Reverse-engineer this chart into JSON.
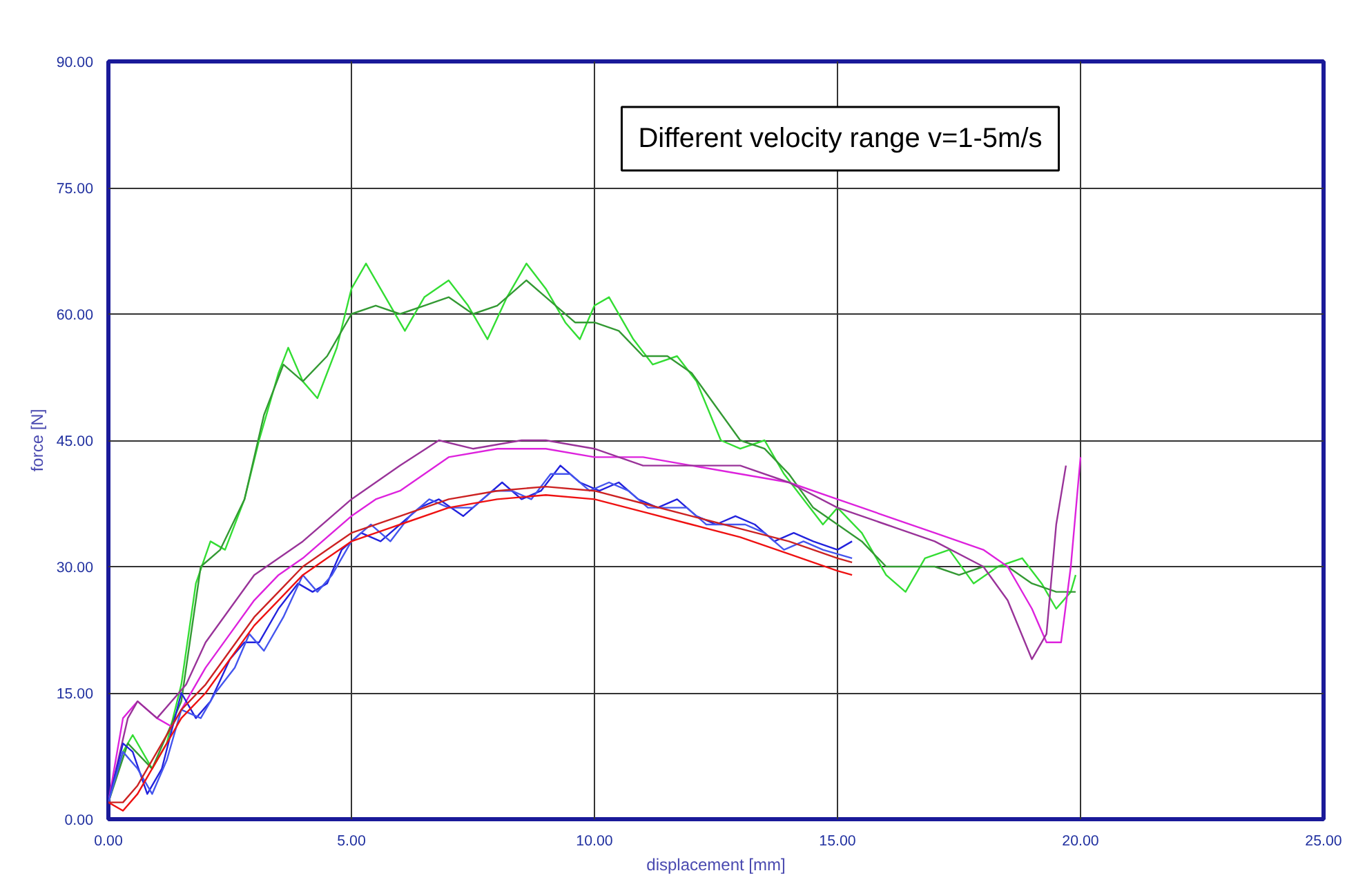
{
  "chart_data": {
    "type": "line",
    "xlabel": "displacement [mm]",
    "ylabel": "force [N]",
    "annotations": [
      "Different velocity range v=1-5m/s"
    ],
    "xlim": [
      0,
      25
    ],
    "ylim": [
      0,
      90
    ],
    "xticks": [
      {
        "value": 0,
        "label": "0.00"
      },
      {
        "value": 5,
        "label": "5.00"
      },
      {
        "value": 10,
        "label": "10.00"
      },
      {
        "value": 15,
        "label": "15.00"
      },
      {
        "value": 20,
        "label": "20.00"
      },
      {
        "value": 25,
        "label": "25.00"
      }
    ],
    "yticks": [
      {
        "value": 0,
        "label": "0.00"
      },
      {
        "value": 15,
        "label": "15.00"
      },
      {
        "value": 30,
        "label": "30.00"
      },
      {
        "value": 45,
        "label": "45.00"
      },
      {
        "value": 60,
        "label": "60.00"
      },
      {
        "value": 75,
        "label": "75.00"
      },
      {
        "value": 90,
        "label": "90.00"
      }
    ],
    "grid": true,
    "line_style": "solid",
    "marker": "none",
    "series": [
      {
        "color": "#33dd33",
        "x": [
          0,
          0.3,
          0.5,
          0.9,
          1.2,
          1.5,
          1.8,
          2.1,
          2.4,
          2.8,
          3.1,
          3.5,
          3.7,
          4.0,
          4.3,
          4.7,
          5.0,
          5.3,
          5.7,
          6.1,
          6.5,
          7.0,
          7.4,
          7.8,
          8.2,
          8.6,
          9.0,
          9.4,
          9.7,
          10.0,
          10.3,
          10.8,
          11.2,
          11.7,
          12.1,
          12.6,
          13.0,
          13.5,
          13.9,
          14.3,
          14.7,
          15.0,
          15.5,
          16.0,
          16.4,
          16.8,
          17.3,
          17.8,
          18.3,
          18.8,
          19.2,
          19.5,
          19.8,
          19.9
        ],
        "values": [
          2,
          8,
          10,
          6,
          9,
          16,
          28,
          33,
          32,
          38,
          45,
          53,
          56,
          52,
          50,
          56,
          63,
          66,
          62,
          58,
          62,
          64,
          61,
          57,
          62,
          66,
          63,
          59,
          57,
          61,
          62,
          57,
          54,
          55,
          52,
          45,
          44,
          45,
          41,
          38,
          35,
          37,
          34,
          29,
          27,
          31,
          32,
          28,
          30,
          31,
          28,
          25,
          27,
          29
        ]
      },
      {
        "color": "#339933",
        "x": [
          0,
          0.4,
          0.9,
          1.5,
          1.9,
          2.3,
          2.8,
          3.2,
          3.6,
          4.0,
          4.5,
          5.0,
          5.5,
          6.0,
          6.5,
          7.0,
          7.5,
          8.0,
          8.6,
          9.0,
          9.6,
          10.0,
          10.5,
          11.0,
          11.5,
          12.0,
          12.5,
          13.0,
          13.5,
          14.0,
          14.5,
          15.0,
          15.5,
          16.0,
          16.5,
          17.0,
          17.5,
          18.0,
          18.5,
          19.0,
          19.5,
          19.9
        ],
        "values": [
          2,
          9,
          6,
          14,
          30,
          32,
          38,
          48,
          54,
          52,
          55,
          60,
          61,
          60,
          61,
          62,
          60,
          61,
          64,
          62,
          59,
          59,
          58,
          55,
          55,
          53,
          49,
          45,
          44,
          41,
          37,
          35,
          33,
          30,
          30,
          30,
          29,
          30,
          30,
          28,
          27,
          27
        ]
      },
      {
        "color": "#dd22dd",
        "x": [
          0,
          0.3,
          0.6,
          1.0,
          1.3,
          1.6,
          2.0,
          2.5,
          3.0,
          3.5,
          4.0,
          5.0,
          5.5,
          6.0,
          7.0,
          8.0,
          9.0,
          10.0,
          11.0,
          12.0,
          13.0,
          14.0,
          15.0,
          16.0,
          17.0,
          18.0,
          18.5,
          19.0,
          19.3,
          19.6,
          19.8,
          20.0
        ],
        "values": [
          2,
          12,
          14,
          12,
          11,
          14,
          18,
          22,
          26,
          29,
          31,
          36,
          38,
          39,
          43,
          44,
          44,
          43,
          43,
          42,
          41,
          40,
          38,
          36,
          34,
          32,
          30,
          25,
          21,
          21,
          30,
          43
        ]
      },
      {
        "color": "#993399",
        "x": [
          0,
          0.4,
          0.6,
          1.0,
          1.6,
          2.0,
          2.5,
          3.0,
          4.0,
          5.0,
          6.0,
          6.8,
          7.5,
          8.5,
          9.0,
          10.0,
          11.0,
          12.0,
          13.0,
          14.0,
          15.0,
          16.0,
          17.0,
          18.0,
          18.5,
          19.0,
          19.3,
          19.5,
          19.7
        ],
        "values": [
          2,
          12,
          14,
          12,
          16,
          21,
          25,
          29,
          33,
          38,
          42,
          45,
          44,
          45,
          45,
          44,
          42,
          42,
          42,
          40,
          37,
          35,
          33,
          30,
          26,
          19,
          22,
          35,
          42
        ]
      },
      {
        "color": "#2222dd",
        "x": [
          0,
          0.3,
          0.5,
          0.8,
          1.1,
          1.5,
          1.8,
          2.1,
          2.5,
          2.8,
          3.1,
          3.5,
          3.9,
          4.2,
          4.5,
          4.8,
          5.2,
          5.6,
          6.0,
          6.4,
          6.8,
          7.3,
          7.7,
          8.1,
          8.5,
          8.9,
          9.3,
          9.7,
          10.1,
          10.5,
          10.9,
          11.3,
          11.7,
          12.1,
          12.5,
          12.9,
          13.3,
          13.7,
          14.1,
          14.5,
          15.0,
          15.3
        ],
        "values": [
          2,
          9,
          8,
          3,
          6,
          15,
          12,
          14,
          19,
          21,
          21,
          25,
          28,
          27,
          28,
          32,
          34,
          33,
          35,
          37,
          38,
          36,
          38,
          40,
          38,
          39,
          42,
          40,
          39,
          40,
          38,
          37,
          38,
          36,
          35,
          36,
          35,
          33,
          34,
          33,
          32,
          33
        ]
      },
      {
        "color": "#4455ee",
        "x": [
          0,
          0.3,
          0.6,
          0.9,
          1.2,
          1.5,
          1.9,
          2.2,
          2.6,
          2.9,
          3.2,
          3.6,
          4.0,
          4.3,
          4.6,
          5.0,
          5.4,
          5.8,
          6.2,
          6.6,
          7.0,
          7.5,
          7.9,
          8.3,
          8.7,
          9.1,
          9.5,
          9.9,
          10.3,
          10.7,
          11.1,
          11.5,
          11.9,
          12.3,
          12.7,
          13.1,
          13.5,
          13.9,
          14.3,
          14.7,
          15.3
        ],
        "values": [
          2,
          8,
          6,
          3,
          7,
          13,
          12,
          15,
          18,
          22,
          20,
          24,
          29,
          27,
          29,
          33,
          35,
          33,
          36,
          38,
          37,
          37,
          39,
          39,
          38,
          41,
          41,
          39,
          40,
          39,
          37,
          37,
          37,
          35,
          35,
          35,
          34,
          32,
          33,
          32,
          31
        ]
      },
      {
        "color": "#ee1111",
        "x": [
          0,
          0.3,
          0.6,
          1.0,
          1.5,
          2.0,
          2.5,
          3.0,
          3.5,
          4.0,
          4.5,
          5.0,
          6.0,
          7.0,
          8.0,
          9.0,
          10.0,
          11.0,
          12.0,
          13.0,
          14.0,
          15.0,
          15.3
        ],
        "values": [
          2,
          1,
          3,
          7,
          12,
          15,
          19,
          23,
          26,
          29,
          31,
          33,
          35,
          37,
          38,
          38.5,
          38,
          36.5,
          35,
          33.5,
          31.5,
          29.5,
          29
        ]
      },
      {
        "color": "#cc2222",
        "x": [
          0,
          0.3,
          0.6,
          1.0,
          1.5,
          2.0,
          2.5,
          3.0,
          3.5,
          4.0,
          4.5,
          5.0,
          6.0,
          7.0,
          8.0,
          9.0,
          10.0,
          11.0,
          12.0,
          13.0,
          14.0,
          15.0,
          15.3
        ],
        "values": [
          2,
          2,
          4,
          8,
          13,
          16,
          20,
          24,
          27,
          30,
          32,
          34,
          36,
          38,
          39,
          39.5,
          39,
          37.5,
          36,
          34.5,
          33,
          31,
          30.5
        ]
      }
    ]
  }
}
